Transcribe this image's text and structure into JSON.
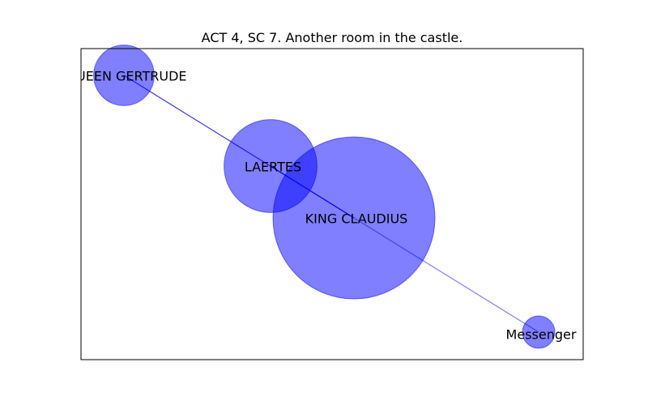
{
  "figure": {
    "title": "ACT 4, SC 7. Another room in the castle."
  },
  "network": {
    "node_color": "#0000ff",
    "edge_color": "#0000ff",
    "nodes": [
      {
        "id": "king_claudius",
        "label": "KING CLAUDIUS",
        "weight": 1.0
      },
      {
        "id": "laertes",
        "label": "LAERTES",
        "weight": 0.33
      },
      {
        "id": "queen_gertrude",
        "label": "QUEEN GERTRUDE",
        "weight": 0.14
      },
      {
        "id": "messenger",
        "label": "Messenger",
        "weight": 0.04
      }
    ],
    "edges": [
      {
        "source": "queen_gertrude",
        "target": "king_claudius",
        "strength": "strong"
      },
      {
        "source": "king_claudius",
        "target": "messenger",
        "strength": "weak"
      },
      {
        "source": "laertes",
        "target": "king_claudius",
        "strength": "strong"
      }
    ]
  }
}
